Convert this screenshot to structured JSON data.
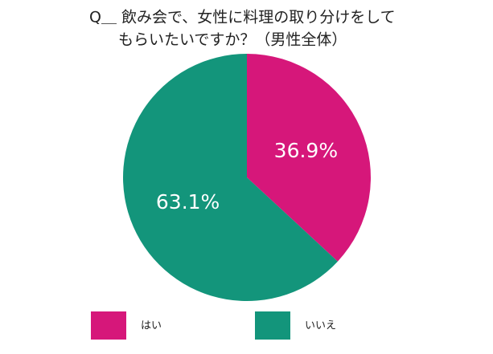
{
  "chart_data": {
    "type": "pie",
    "title": [
      "Q＿ 飲み会で、女性に料理の取り分けをして",
      "もらいたいですか？（男性全体）"
    ],
    "categories": [
      "はい",
      "いいえ"
    ],
    "values": [
      36.9,
      63.1
    ],
    "value_labels": [
      "36.9%",
      "63.1%"
    ],
    "colors": [
      "#d6177a",
      "#13957b"
    ]
  }
}
